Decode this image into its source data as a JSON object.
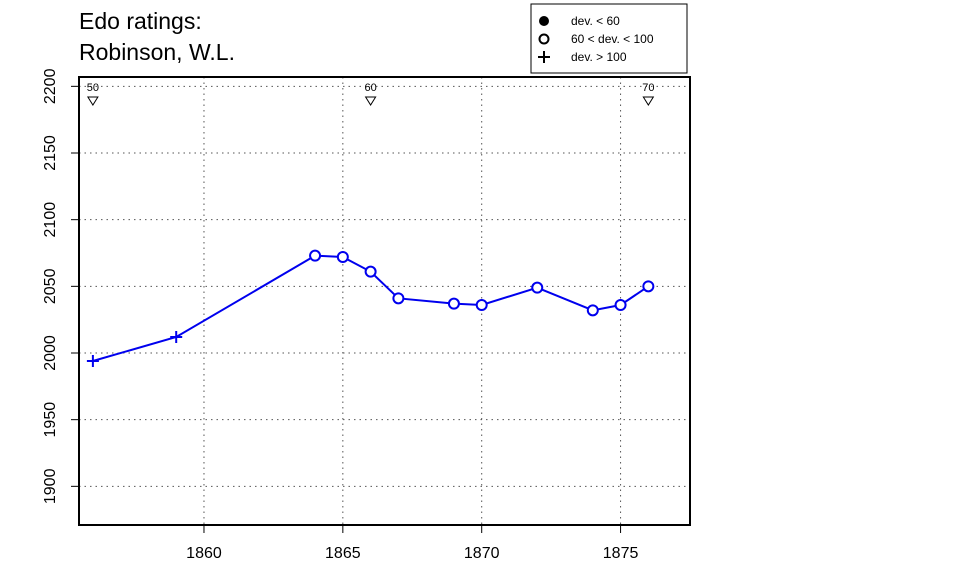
{
  "chart_data": {
    "type": "line",
    "title_lines": [
      "Edo ratings:",
      "Robinson, W.L."
    ],
    "xlabel": "",
    "ylabel": "",
    "xlim": [
      1855.5,
      1877.5
    ],
    "ylim": [
      1871,
      2207
    ],
    "x_ticks": [
      1860,
      1865,
      1870,
      1875
    ],
    "y_ticks": [
      1900,
      1950,
      2000,
      2050,
      2100,
      2150,
      2200
    ],
    "y_tick_labels": [
      "1900",
      "1950",
      "2000",
      "2050",
      "2100",
      "2150",
      "2200"
    ],
    "x_tick_labels": [
      "1860",
      "1865",
      "1870",
      "1875"
    ],
    "grid": true,
    "legend_position": "top-right",
    "legend": [
      {
        "symbol": "filled-circle",
        "label": "dev. < 60"
      },
      {
        "symbol": "open-circle",
        "label": "60 < dev. < 100"
      },
      {
        "symbol": "plus",
        "label": "dev. > 100"
      }
    ],
    "series_color": "#0000ee",
    "series": [
      {
        "points": [
          {
            "x": 1856,
            "y": 1994,
            "marker": "plus"
          },
          {
            "x": 1859,
            "y": 2012,
            "marker": "plus"
          },
          {
            "x": 1864,
            "y": 2073,
            "marker": "open-circle"
          },
          {
            "x": 1865,
            "y": 2072,
            "marker": "open-circle"
          },
          {
            "x": 1866,
            "y": 2061,
            "marker": "open-circle"
          },
          {
            "x": 1867,
            "y": 2041,
            "marker": "open-circle"
          },
          {
            "x": 1869,
            "y": 2037,
            "marker": "open-circle"
          },
          {
            "x": 1870,
            "y": 2036,
            "marker": "open-circle"
          },
          {
            "x": 1872,
            "y": 2049,
            "marker": "open-circle"
          },
          {
            "x": 1874,
            "y": 2032,
            "marker": "open-circle"
          },
          {
            "x": 1875,
            "y": 2036,
            "marker": "open-circle"
          },
          {
            "x": 1876,
            "y": 2050,
            "marker": "open-circle"
          }
        ]
      }
    ],
    "annotations": [
      {
        "x": 1856,
        "label": "50"
      },
      {
        "x": 1866,
        "label": "60"
      },
      {
        "x": 1876,
        "label": "70"
      }
    ]
  }
}
